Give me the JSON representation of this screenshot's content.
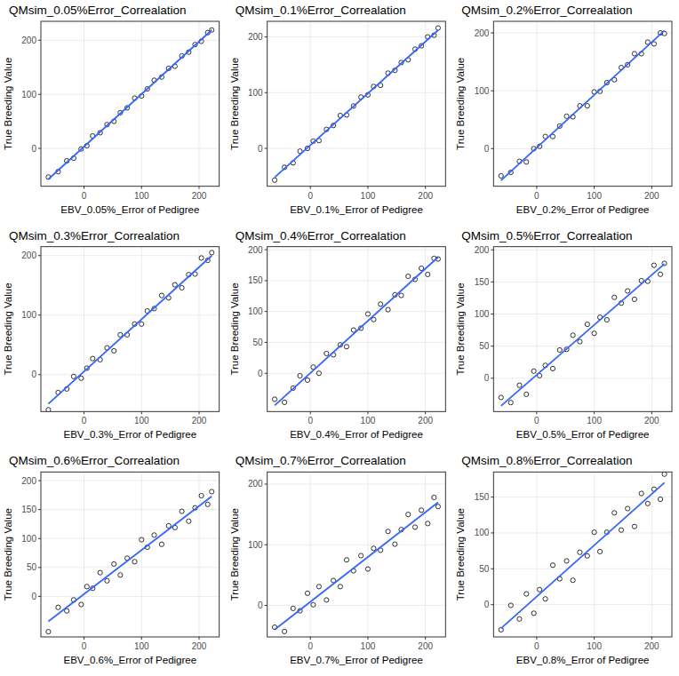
{
  "chart_data": [
    {
      "type": "scatter",
      "title": "QMsim_0.05%Error_Correalation",
      "x_label": "EBV_0.05%_Error of Pedigree",
      "y_label": "True Breeding Value",
      "grid": true,
      "xlim": [
        -75,
        235
      ],
      "xticks": [
        0,
        100,
        200
      ],
      "ylim": [
        -70,
        235
      ],
      "yticks": [
        0,
        100,
        200
      ],
      "series": [
        {
          "type": "scatter",
          "marker": "circle",
          "color": "#000000",
          "x": [
            -62,
            -45,
            -30,
            -18,
            -5,
            5,
            15,
            28,
            40,
            52,
            63,
            75,
            88,
            100,
            110,
            122,
            135,
            147,
            158,
            170,
            182,
            193,
            204,
            215,
            222
          ],
          "values": [
            -53,
            -43,
            -23,
            -18,
            -1,
            5,
            23,
            29,
            44,
            50,
            66,
            75,
            93,
            97,
            110,
            126,
            132,
            148,
            152,
            171,
            178,
            192,
            198,
            214,
            219
          ]
        },
        {
          "type": "line",
          "color": "#3366ff",
          "x": [
            -62,
            222
          ],
          "values": [
            -57,
            219
          ]
        }
      ]
    },
    {
      "type": "scatter",
      "title": "QMsim_0.1%Error_Correalation",
      "x_label": "EBV_0.1%_Error of Pedigree",
      "y_label": "True Breeding Value",
      "grid": true,
      "xlim": [
        -75,
        235
      ],
      "xticks": [
        0,
        100,
        200
      ],
      "ylim": [
        -68,
        228
      ],
      "yticks": [
        0,
        100,
        200
      ],
      "series": [
        {
          "type": "scatter",
          "marker": "circle",
          "color": "#000000",
          "x": [
            -62,
            -45,
            -30,
            -18,
            -5,
            5,
            15,
            28,
            40,
            52,
            63,
            75,
            88,
            100,
            110,
            122,
            135,
            147,
            158,
            170,
            182,
            193,
            204,
            215,
            222
          ],
          "values": [
            -57,
            -34,
            -26,
            -5,
            0,
            13,
            14,
            34,
            41,
            59,
            60,
            76,
            92,
            96,
            111,
            113,
            135,
            140,
            154,
            159,
            178,
            184,
            200,
            203,
            216
          ]
        },
        {
          "type": "line",
          "color": "#3366ff",
          "x": [
            -62,
            222
          ],
          "values": [
            -52,
            212
          ]
        }
      ]
    },
    {
      "type": "scatter",
      "title": "QMsim_0.2%Error_Correalation",
      "x_label": "EBV_0.2%_Error of Pedigree",
      "y_label": "True Breeding Value",
      "grid": true,
      "xlim": [
        -75,
        235
      ],
      "xticks": [
        0,
        100,
        200
      ],
      "ylim": [
        -65,
        220
      ],
      "yticks": [
        0,
        100,
        200
      ],
      "series": [
        {
          "type": "scatter",
          "marker": "circle",
          "color": "#000000",
          "x": [
            -62,
            -45,
            -30,
            -18,
            -5,
            5,
            15,
            28,
            40,
            52,
            63,
            75,
            88,
            100,
            110,
            122,
            135,
            147,
            158,
            170,
            182,
            193,
            204,
            215,
            222
          ],
          "values": [
            -47,
            -41,
            -22,
            -23,
            0,
            4,
            21,
            21,
            39,
            56,
            55,
            74,
            74,
            98,
            99,
            114,
            119,
            140,
            145,
            164,
            164,
            184,
            181,
            200,
            199
          ]
        },
        {
          "type": "line",
          "color": "#3366ff",
          "x": [
            -62,
            222
          ],
          "values": [
            -55,
            204
          ]
        }
      ]
    },
    {
      "type": "scatter",
      "title": "QMsim_0.3%Error_Correalation",
      "x_label": "EBV_0.3%_Error of Pedigree",
      "y_label": "True Breeding Value",
      "grid": true,
      "xlim": [
        -75,
        235
      ],
      "xticks": [
        0,
        100,
        200
      ],
      "ylim": [
        -62,
        215
      ],
      "yticks": [
        0,
        100,
        200
      ],
      "series": [
        {
          "type": "scatter",
          "marker": "circle",
          "color": "#000000",
          "x": [
            -62,
            -45,
            -30,
            -18,
            -5,
            5,
            15,
            28,
            40,
            52,
            63,
            75,
            88,
            100,
            110,
            122,
            135,
            147,
            158,
            170,
            182,
            193,
            204,
            215,
            222
          ],
          "values": [
            -59,
            -30,
            -24,
            -3,
            -6,
            11,
            27,
            25,
            45,
            40,
            67,
            67,
            85,
            85,
            107,
            111,
            133,
            129,
            151,
            146,
            168,
            169,
            196,
            192,
            205
          ]
        },
        {
          "type": "line",
          "color": "#3366ff",
          "x": [
            -62,
            222
          ],
          "values": [
            -49,
            200
          ]
        }
      ]
    },
    {
      "type": "scatter",
      "title": "QMsim_0.4%Error_Correalation",
      "x_label": "EBV_0.4%_Error of Pedigree",
      "y_label": "True Breeding Value",
      "grid": true,
      "xlim": [
        -75,
        235
      ],
      "xticks": [
        0,
        100,
        200
      ],
      "ylim": [
        -62,
        205
      ],
      "yticks": [
        0,
        50,
        100,
        150,
        200
      ],
      "series": [
        {
          "type": "scatter",
          "marker": "circle",
          "color": "#000000",
          "x": [
            -62,
            -45,
            -30,
            -18,
            -5,
            5,
            15,
            28,
            40,
            52,
            63,
            75,
            88,
            100,
            110,
            122,
            135,
            147,
            158,
            170,
            182,
            193,
            204,
            215,
            222
          ],
          "values": [
            -42,
            -47,
            -24,
            -4,
            -11,
            10,
            0,
            32,
            30,
            46,
            43,
            70,
            73,
            96,
            87,
            112,
            103,
            127,
            126,
            157,
            152,
            170,
            160,
            186,
            185
          ]
        },
        {
          "type": "line",
          "color": "#3366ff",
          "x": [
            -62,
            222
          ],
          "values": [
            -52,
            188
          ]
        }
      ]
    },
    {
      "type": "scatter",
      "title": "QMsim_0.5%Error_Correalation",
      "x_label": "EBV_0.5%_Error of Pedigree",
      "y_label": "True Breeding Value",
      "grid": true,
      "xlim": [
        -75,
        235
      ],
      "xticks": [
        0,
        100,
        200
      ],
      "ylim": [
        -52,
        205
      ],
      "yticks": [
        0,
        50,
        100,
        150,
        200
      ],
      "series": [
        {
          "type": "scatter",
          "marker": "circle",
          "color": "#000000",
          "x": [
            -62,
            -45,
            -30,
            -18,
            -5,
            5,
            15,
            28,
            40,
            52,
            63,
            75,
            88,
            100,
            110,
            122,
            135,
            147,
            158,
            170,
            182,
            193,
            204,
            215,
            222
          ],
          "values": [
            -30,
            -38,
            -11,
            -25,
            11,
            4,
            20,
            15,
            44,
            45,
            67,
            57,
            84,
            70,
            95,
            91,
            126,
            117,
            136,
            123,
            152,
            151,
            176,
            162,
            179
          ]
        },
        {
          "type": "line",
          "color": "#3366ff",
          "x": [
            -62,
            222
          ],
          "values": [
            -43,
            178
          ]
        }
      ]
    },
    {
      "type": "scatter",
      "title": "QMsim_0.6%Error_Correalation",
      "x_label": "EBV_0.6%_Error of Pedigree",
      "y_label": "True Breeding Value",
      "grid": true,
      "xlim": [
        -75,
        235
      ],
      "xticks": [
        0,
        100,
        200
      ],
      "ylim": [
        -70,
        215
      ],
      "yticks": [
        0,
        50,
        100,
        150,
        200
      ],
      "series": [
        {
          "type": "scatter",
          "marker": "circle",
          "color": "#000000",
          "x": [
            -62,
            -45,
            -30,
            -18,
            -5,
            5,
            15,
            28,
            40,
            52,
            63,
            75,
            88,
            100,
            110,
            122,
            135,
            147,
            158,
            170,
            182,
            193,
            204,
            215,
            222
          ],
          "values": [
            -61,
            -19,
            -25,
            -6,
            -14,
            17,
            14,
            41,
            27,
            56,
            37,
            66,
            60,
            98,
            85,
            106,
            90,
            122,
            119,
            147,
            130,
            153,
            174,
            159,
            181
          ]
        },
        {
          "type": "line",
          "color": "#3366ff",
          "x": [
            -62,
            222
          ],
          "values": [
            -43,
            173
          ]
        }
      ]
    },
    {
      "type": "scatter",
      "title": "QMsim_0.7%Error_Correalation",
      "x_label": "EBV_0.7%_Error of Pedigree",
      "y_label": "True Breeding Value",
      "grid": true,
      "xlim": [
        -75,
        235
      ],
      "xticks": [
        0,
        100,
        200
      ],
      "ylim": [
        -52,
        220
      ],
      "yticks": [
        0,
        100,
        200
      ],
      "series": [
        {
          "type": "scatter",
          "marker": "circle",
          "color": "#000000",
          "x": [
            -62,
            -45,
            -30,
            -18,
            -5,
            5,
            15,
            28,
            40,
            52,
            63,
            75,
            88,
            100,
            110,
            122,
            135,
            147,
            158,
            170,
            182,
            193,
            204,
            215,
            222
          ],
          "values": [
            -36,
            -43,
            -5,
            -9,
            20,
            1,
            31,
            9,
            41,
            31,
            75,
            57,
            82,
            60,
            94,
            91,
            122,
            101,
            125,
            150,
            129,
            157,
            135,
            178,
            163
          ]
        },
        {
          "type": "line",
          "color": "#3366ff",
          "x": [
            -62,
            222
          ],
          "values": [
            -40,
            170
          ]
        }
      ]
    },
    {
      "type": "scatter",
      "title": "QMsim_0.8%Error_Correalation",
      "x_label": "EBV_0.8%_Error of Pedigree",
      "y_label": "True Breeding Value",
      "grid": true,
      "xlim": [
        -75,
        235
      ],
      "xticks": [
        0,
        100,
        200
      ],
      "ylim": [
        -45,
        185
      ],
      "yticks": [
        0,
        50,
        100,
        150
      ],
      "series": [
        {
          "type": "scatter",
          "marker": "circle",
          "color": "#000000",
          "x": [
            -62,
            -45,
            -30,
            -18,
            -5,
            5,
            15,
            28,
            40,
            52,
            63,
            75,
            88,
            100,
            110,
            122,
            135,
            147,
            158,
            170,
            182,
            193,
            204,
            215,
            222
          ],
          "values": [
            -35,
            -1,
            -20,
            15,
            -12,
            21,
            8,
            55,
            36,
            61,
            34,
            73,
            68,
            101,
            74,
            101,
            128,
            104,
            134,
            109,
            155,
            141,
            161,
            147,
            182
          ]
        },
        {
          "type": "line",
          "color": "#3366ff",
          "x": [
            -62,
            222
          ],
          "values": [
            -33,
            170
          ]
        }
      ]
    }
  ]
}
